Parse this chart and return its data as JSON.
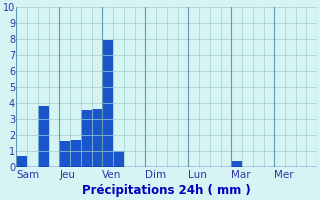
{
  "bar_values": [
    0.7,
    0.0,
    3.8,
    0.0,
    1.65,
    1.7,
    3.55,
    3.6,
    7.9,
    1.0,
    0.0,
    0.0,
    0.0,
    0.0,
    0.0,
    0.0,
    0.0,
    0.0,
    0.0,
    0.0,
    0.4,
    0.0,
    0.0,
    0.0,
    0.0,
    0.0,
    0.0,
    0.0
  ],
  "n_days": 7,
  "bars_per_day": 4,
  "day_labels": [
    "Sam",
    "Jeu",
    "Ven",
    "Dim",
    "Lun",
    "Mar",
    "Mer"
  ],
  "ylim": [
    0,
    10
  ],
  "yticks": [
    0,
    1,
    2,
    3,
    4,
    5,
    6,
    7,
    8,
    9,
    10
  ],
  "xlabel": "Précipitations 24h ( mm )",
  "bar_color": "#1a55cc",
  "background_color": "#d6f4f4",
  "grid_color": "#9ecece",
  "separator_color": "#6699aa",
  "axis_color": "#0000aa",
  "tick_color": "#3333aa",
  "xlabel_color": "#0000bb",
  "xlabel_fontsize": 8.5,
  "tick_fontsize": 7,
  "label_fontsize": 7.5
}
